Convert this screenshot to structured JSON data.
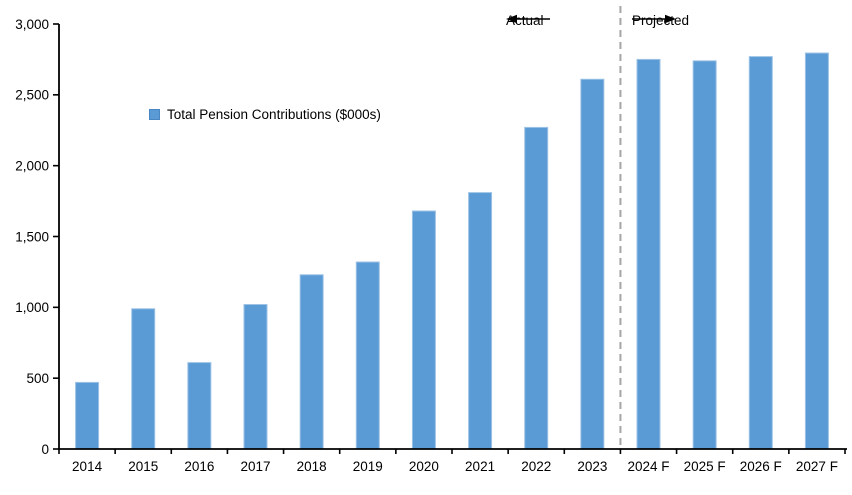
{
  "chart_data": {
    "type": "bar",
    "title": "",
    "legend": "Total Pension Contributions ($000s)",
    "categories": [
      "2014",
      "2015",
      "2016",
      "2017",
      "2018",
      "2019",
      "2020",
      "2021",
      "2022",
      "2023",
      "2024 F",
      "2025 F",
      "2026 F",
      "2027 F"
    ],
    "values": [
      470,
      990,
      610,
      1020,
      1230,
      1320,
      1680,
      1810,
      2270,
      2610,
      2750,
      2740,
      2770,
      2795
    ],
    "xlabel": "",
    "ylabel": "",
    "ylim": [
      0,
      3000
    ],
    "ytick_step": 500,
    "ytick_labels": [
      "0",
      "500",
      "1,000",
      "1,500",
      "2,000",
      "2,500",
      "3,000"
    ],
    "grid": false,
    "legend_position": "inside-upper-left",
    "bar_color": "#5B9BD5",
    "bar_edge_color": "#9DC3E6",
    "axis_color": "#000000",
    "divider": {
      "after_category_index": 9,
      "style": "dashed",
      "color": "#A6A6A6",
      "left_label": "Actual",
      "right_label": "Projected"
    }
  }
}
